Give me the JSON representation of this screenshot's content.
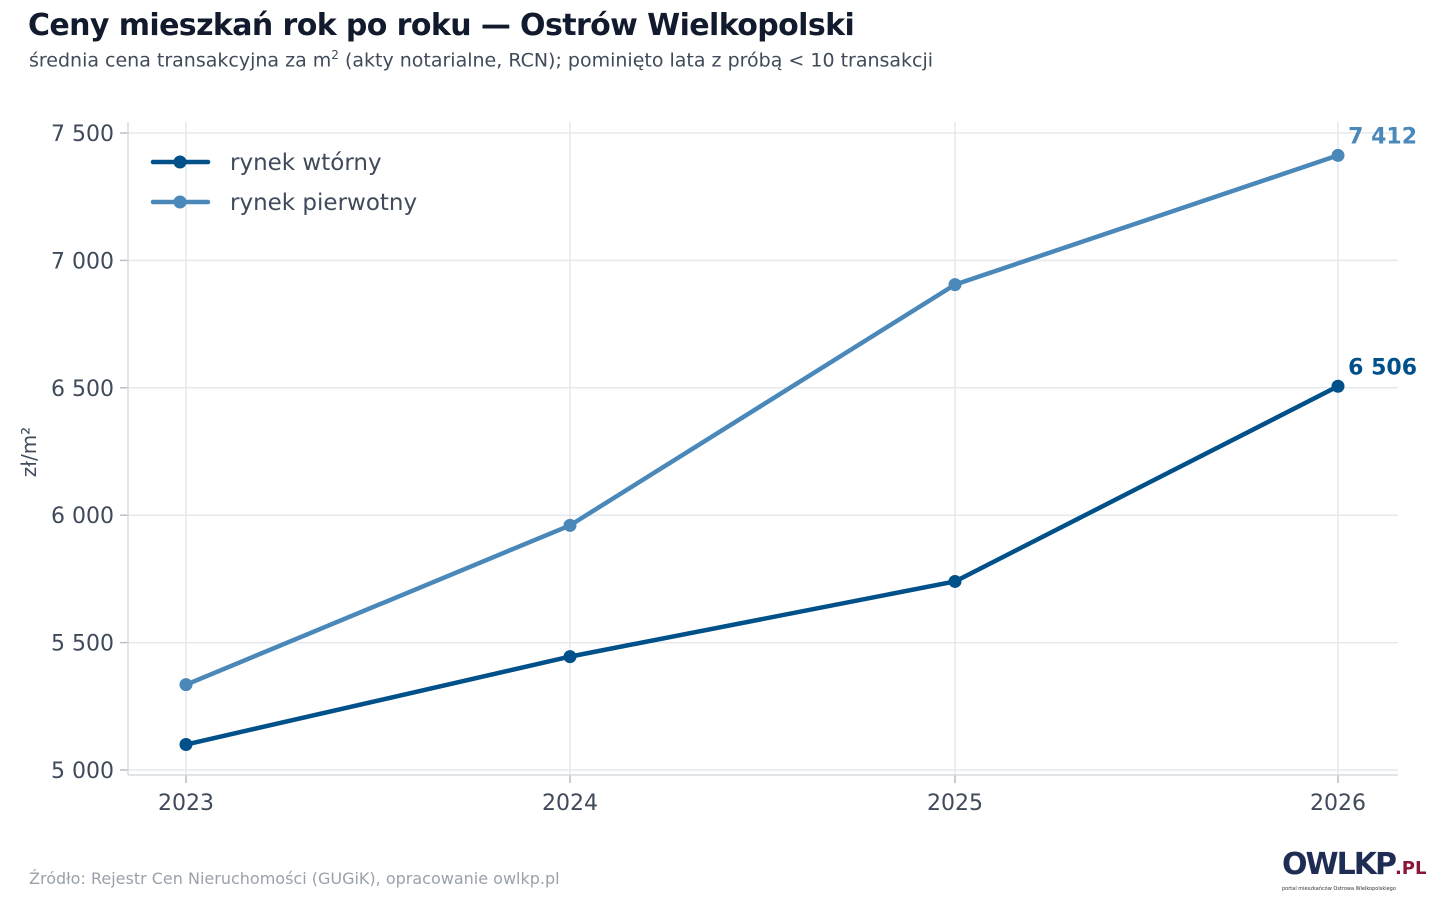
{
  "title": "Ceny mieszkań rok po roku — Ostrów Wielkopolski",
  "subtitle": {
    "before": "średnia cena transakcyjna za m",
    "sup": "2",
    "after": " (akty notarialne, RCN); pominięto lata z próbą < 10 transakcji"
  },
  "source": "Źródło: Rejestr Cen Nieruchomości (GUGiK), opracowanie owlkp.pl",
  "logo": {
    "word": "OWLKP",
    "suffix": ".PL",
    "tagline": "portal mieszkańców Ostrowa Wielkopolskiego"
  },
  "colors": {
    "primary": "#4a88b9",
    "secondary": "#00508a",
    "grid": "#e6e8eb",
    "text": "#3f4a5a"
  },
  "chart_data": {
    "type": "line",
    "x": [
      2023,
      2024,
      2025,
      2026
    ],
    "x_tick_labels": [
      "2023",
      "2024",
      "2025",
      "2026"
    ],
    "ylabel": "zł/m²",
    "ylim": [
      5000,
      7500
    ],
    "y_ticks": [
      5000,
      5500,
      6000,
      6500,
      7000,
      7500
    ],
    "y_tick_labels": [
      "5 000",
      "5 500",
      "6 000",
      "6 500",
      "7 000",
      "7 500"
    ],
    "grid": true,
    "legend_position": "top-left",
    "series": [
      {
        "name": "rynek wtórny",
        "color": "#00508a",
        "values": [
          5100,
          5445,
          5740,
          6506
        ],
        "end_label": "6 506"
      },
      {
        "name": "rynek pierwotny",
        "color": "#4a88b9",
        "values": [
          5335,
          5960,
          6905,
          7412
        ],
        "end_label": "7 412"
      }
    ]
  }
}
